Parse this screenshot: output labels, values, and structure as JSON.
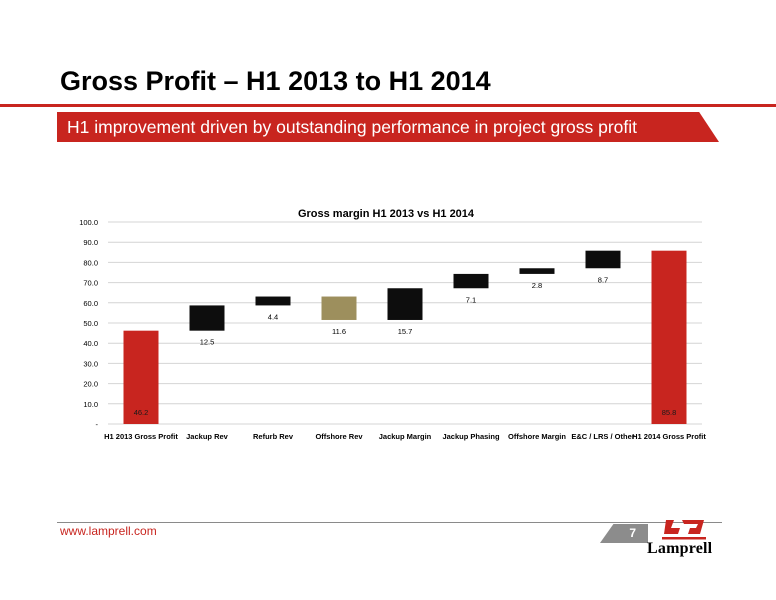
{
  "header": {
    "title": "Gross Profit – H1 2013 to H1 2014",
    "subtitle": "H1 improvement driven by outstanding performance in project gross profit"
  },
  "footer": {
    "url": "www.lamprell.com",
    "page_number": "7",
    "logo_text": "Lamprell"
  },
  "colors": {
    "accent": "#c8251f",
    "dark_bar": "#0d0d0d",
    "olive_bar": "#9d8f5d"
  },
  "chart_data": {
    "type": "bar",
    "subtype": "waterfall",
    "title": "Gross margin H1 2013 vs H1 2014",
    "xlabel": "",
    "ylabel": "",
    "ylim": [
      0,
      100
    ],
    "yticks": [
      "-",
      "10.0",
      "20.0",
      "30.0",
      "40.0",
      "50.0",
      "60.0",
      "70.0",
      "80.0",
      "90.0",
      "100.0"
    ],
    "grid": true,
    "legend": "none",
    "categories": [
      "H1 2013 Gross Profit",
      "Jackup Rev",
      "Refurb Rev",
      "Offshore Rev",
      "Jackup Margin",
      "Jackup Phasing",
      "Offshore Margin",
      "E&C / LRS / Other",
      "H1 2014 Gross Profit"
    ],
    "bars": [
      {
        "base": 0,
        "top": 46.2,
        "label": "46.2",
        "kind": "total",
        "color": "#c8251f"
      },
      {
        "base": 46.2,
        "top": 58.7,
        "label": "12.5",
        "kind": "increase",
        "color": "#0d0d0d"
      },
      {
        "base": 58.7,
        "top": 63.1,
        "label": "4.4",
        "kind": "increase",
        "color": "#0d0d0d"
      },
      {
        "base": 51.5,
        "top": 63.1,
        "label": "11.6",
        "kind": "decrease",
        "color": "#9d8f5d"
      },
      {
        "base": 51.5,
        "top": 67.2,
        "label": "15.7",
        "kind": "increase",
        "color": "#0d0d0d"
      },
      {
        "base": 67.2,
        "top": 74.3,
        "label": "7.1",
        "kind": "increase",
        "color": "#0d0d0d"
      },
      {
        "base": 74.3,
        "top": 77.1,
        "label": "2.8",
        "kind": "increase",
        "color": "#0d0d0d"
      },
      {
        "base": 77.1,
        "top": 85.8,
        "label": "8.7",
        "kind": "increase",
        "color": "#0d0d0d"
      },
      {
        "base": 0,
        "top": 85.8,
        "label": "85.8",
        "kind": "total",
        "color": "#c8251f"
      }
    ]
  }
}
